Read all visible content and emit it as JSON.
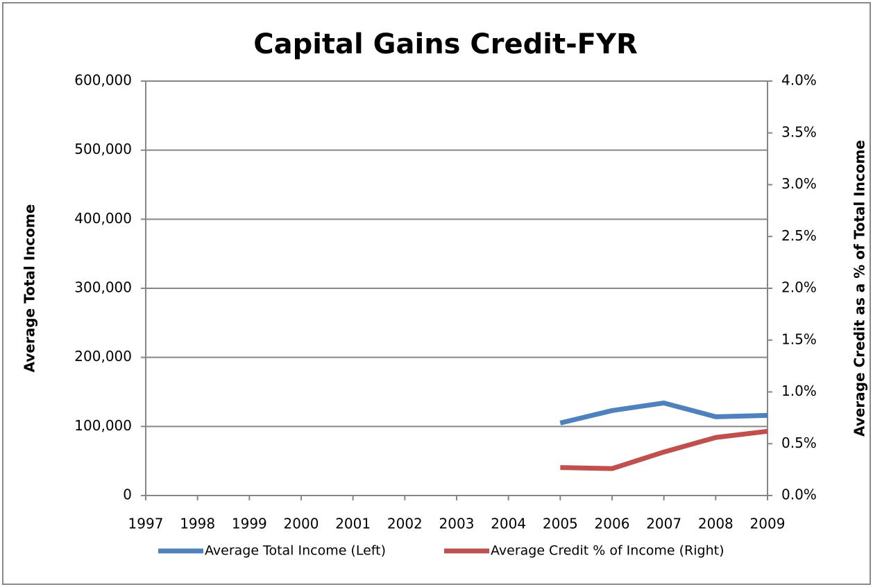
{
  "chart_data": {
    "type": "line",
    "title": "Capital Gains Credit-FYR",
    "y_label": "Average Total  Income",
    "y2_label": "Average Credit as a % of Total Income",
    "categories": [
      "1997",
      "1998",
      "1999",
      "2000",
      "2001",
      "2002",
      "2003",
      "2004",
      "2005",
      "2006",
      "2007",
      "2008",
      "2009"
    ],
    "series": [
      {
        "name": "Average Total Income (Left)",
        "color": "#4f81bd",
        "values": [
          null,
          null,
          null,
          null,
          null,
          null,
          null,
          null,
          105000,
          123000,
          134000,
          114000,
          116000
        ]
      },
      {
        "name": "Average Credit % of Income (Right)",
        "color": "#c0504d",
        "axis": "y2",
        "values": [
          null,
          null,
          null,
          null,
          null,
          null,
          null,
          null,
          0.27,
          0.26,
          0.42,
          0.56,
          0.62
        ]
      }
    ],
    "ylim": [
      0,
      600000
    ],
    "yticks": [
      0,
      {
        "value": 100000,
        "label": "100,000"
      },
      {
        "value": 200000,
        "label": "200,000"
      },
      {
        "value": 300000,
        "label": "300,000"
      },
      {
        "value": 400000,
        "label": "400,000"
      },
      {
        "value": 500000,
        "label": "500,000"
      },
      {
        "value": 600000,
        "label": "600,000"
      }
    ],
    "y2lim": [
      0,
      4
    ],
    "y2ticks": [
      {
        "value": 0,
        "label": "0.0%"
      },
      {
        "value": 0.5,
        "label": "0.5%"
      },
      {
        "value": 1,
        "label": "1.0%"
      },
      {
        "value": 1.5,
        "label": "1.5%"
      },
      {
        "value": 2,
        "label": "2.0%"
      },
      {
        "value": 2.5,
        "label": "2.5%"
      },
      {
        "value": 3,
        "label": "3.0%"
      },
      {
        "value": 3.5,
        "label": "3.5%"
      },
      {
        "value": 4,
        "label": "4.0%"
      }
    ],
    "grid": true,
    "legend": "bottom"
  }
}
